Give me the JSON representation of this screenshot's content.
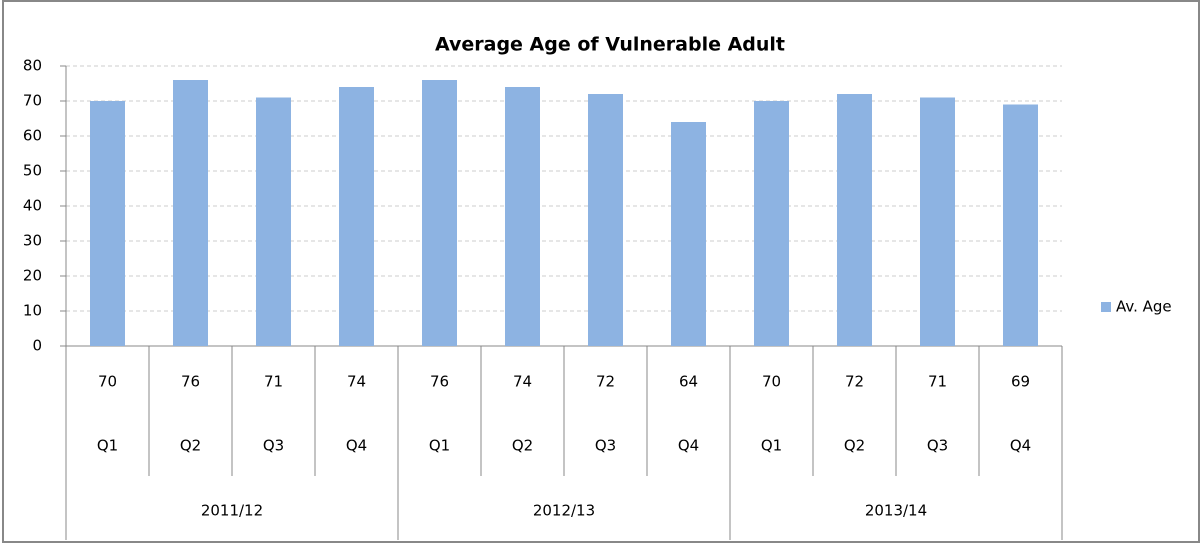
{
  "chart_data": {
    "type": "bar",
    "title": "Average Age of Vulnerable Adult",
    "categories": [
      "Q1",
      "Q2",
      "Q3",
      "Q4",
      "Q1",
      "Q2",
      "Q3",
      "Q4",
      "Q1",
      "Q2",
      "Q3",
      "Q4"
    ],
    "groups": [
      "2011/12",
      "2012/13",
      "2013/14"
    ],
    "series": [
      {
        "name": "Av. Age",
        "color": "#8db3e2",
        "values": [
          70,
          76,
          71,
          74,
          76,
          74,
          72,
          64,
          70,
          72,
          71,
          69
        ]
      }
    ],
    "ylim": [
      0,
      80
    ],
    "yticks": [
      0,
      10,
      20,
      30,
      40,
      50,
      60,
      70,
      80
    ],
    "grid": true,
    "legend": "right"
  }
}
